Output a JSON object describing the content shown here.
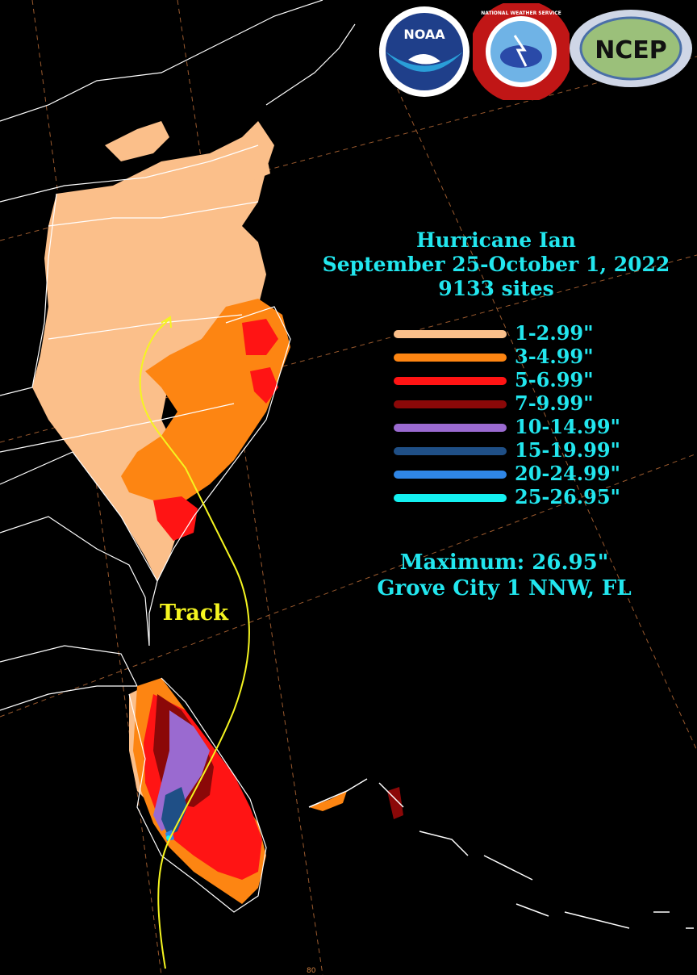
{
  "title": {
    "line1": "Hurricane Ian",
    "line2": "September 25-October 1, 2022",
    "line3": "9133 sites"
  },
  "legend": [
    {
      "label": "1-2.99\"",
      "color": "#fbbf8a"
    },
    {
      "label": "3-4.99\"",
      "color": "#fd8512"
    },
    {
      "label": "5-6.99\"",
      "color": "#ff1414"
    },
    {
      "label": "7-9.99\"",
      "color": "#8b0808"
    },
    {
      "label": "10-14.99\"",
      "color": "#9a6ad0"
    },
    {
      "label": "15-19.99\"",
      "color": "#1f4f86"
    },
    {
      "label": "20-24.99\"",
      "color": "#2f86e6"
    },
    {
      "label": "25-26.95\"",
      "color": "#14f0f0"
    }
  ],
  "maximum": {
    "line1": "Maximum:  26.95\"",
    "line2": "Grove City 1 NNW, FL"
  },
  "track_label": "Track",
  "track_color": "#f5f520",
  "lon_label": "80",
  "logos": [
    {
      "name": "noaa-logo",
      "text": "NOAA"
    },
    {
      "name": "nws-logo",
      "text": "NATIONAL WEATHER SERVICE"
    },
    {
      "name": "ncep-logo",
      "text": "NCEP"
    }
  ]
}
